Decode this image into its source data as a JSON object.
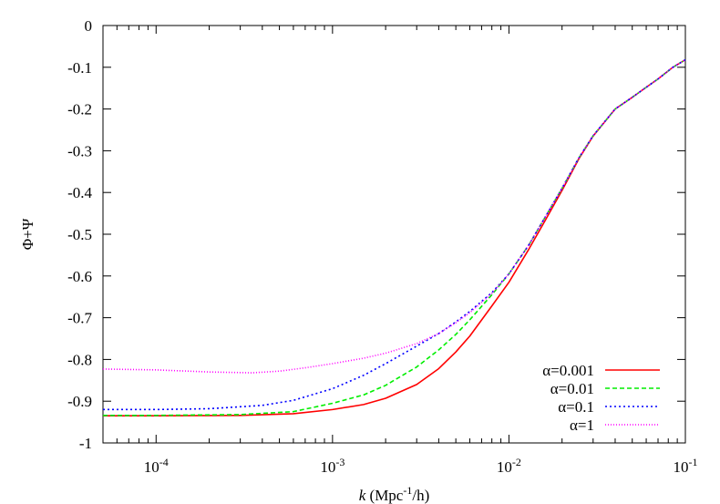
{
  "chart_data": {
    "type": "line",
    "title": "",
    "xlabel": "k (Mpc⁻¹/h)",
    "xlabel_parts": {
      "var": "k",
      "pre": " (Mpc",
      "sup": "-1",
      "post": "/h)"
    },
    "ylabel": "Φ+Ψ",
    "xscale": "log",
    "xlim": [
      5e-05,
      0.1
    ],
    "ylim": [
      -1,
      0
    ],
    "x_ticks": [
      {
        "value": 0.0001,
        "base": "10",
        "exp": "-4"
      },
      {
        "value": 0.001,
        "base": "10",
        "exp": "-3"
      },
      {
        "value": 0.01,
        "base": "10",
        "exp": "-2"
      },
      {
        "value": 0.1,
        "base": "10",
        "exp": "-1"
      }
    ],
    "y_ticks": [
      {
        "value": 0,
        "label": "0"
      },
      {
        "value": -0.1,
        "label": "-0.1"
      },
      {
        "value": -0.2,
        "label": "-0.2"
      },
      {
        "value": -0.3,
        "label": "-0.3"
      },
      {
        "value": -0.4,
        "label": "-0.4"
      },
      {
        "value": -0.5,
        "label": "-0.5"
      },
      {
        "value": -0.6,
        "label": "-0.6"
      },
      {
        "value": -0.7,
        "label": "-0.7"
      },
      {
        "value": -0.8,
        "label": "-0.8"
      },
      {
        "value": -0.9,
        "label": "-0.9"
      },
      {
        "value": -1,
        "label": "-1"
      }
    ],
    "grid": false,
    "legend_position": "bottom-right",
    "series": [
      {
        "name": "α=0.001",
        "color": "#ff0000",
        "dash": "solid",
        "points": [
          [
            5e-05,
            -0.935
          ],
          [
            0.0001,
            -0.935
          ],
          [
            0.0003,
            -0.934
          ],
          [
            0.0006,
            -0.93
          ],
          [
            0.001,
            -0.92
          ],
          [
            0.0015,
            -0.908
          ],
          [
            0.002,
            -0.893
          ],
          [
            0.003,
            -0.86
          ],
          [
            0.004,
            -0.822
          ],
          [
            0.005,
            -0.782
          ],
          [
            0.006,
            -0.744
          ],
          [
            0.008,
            -0.672
          ],
          [
            0.01,
            -0.615
          ],
          [
            0.013,
            -0.535
          ],
          [
            0.016,
            -0.468
          ],
          [
            0.02,
            -0.395
          ],
          [
            0.025,
            -0.318
          ],
          [
            0.03,
            -0.265
          ],
          [
            0.04,
            -0.2
          ],
          [
            0.05,
            -0.172
          ],
          [
            0.06,
            -0.148
          ],
          [
            0.07,
            -0.128
          ],
          [
            0.085,
            -0.1
          ],
          [
            0.1,
            -0.082
          ]
        ]
      },
      {
        "name": "α=0.01",
        "color": "#00ee00",
        "dash": "dashed",
        "points": [
          [
            5e-05,
            -0.934
          ],
          [
            0.0001,
            -0.934
          ],
          [
            0.0003,
            -0.932
          ],
          [
            0.0006,
            -0.925
          ],
          [
            0.001,
            -0.905
          ],
          [
            0.0015,
            -0.885
          ],
          [
            0.002,
            -0.862
          ],
          [
            0.003,
            -0.818
          ],
          [
            0.004,
            -0.777
          ],
          [
            0.005,
            -0.74
          ],
          [
            0.006,
            -0.705
          ],
          [
            0.008,
            -0.645
          ],
          [
            0.01,
            -0.595
          ],
          [
            0.013,
            -0.525
          ],
          [
            0.016,
            -0.46
          ],
          [
            0.02,
            -0.39
          ],
          [
            0.025,
            -0.316
          ],
          [
            0.03,
            -0.264
          ],
          [
            0.04,
            -0.2
          ],
          [
            0.05,
            -0.172
          ],
          [
            0.06,
            -0.148
          ],
          [
            0.07,
            -0.128
          ],
          [
            0.085,
            -0.1
          ],
          [
            0.1,
            -0.082
          ]
        ]
      },
      {
        "name": "α=0.1",
        "color": "#0000ff",
        "dash": "dotted",
        "points": [
          [
            5e-05,
            -0.92
          ],
          [
            0.0001,
            -0.92
          ],
          [
            0.0002,
            -0.918
          ],
          [
            0.0004,
            -0.91
          ],
          [
            0.0006,
            -0.898
          ],
          [
            0.001,
            -0.87
          ],
          [
            0.0015,
            -0.838
          ],
          [
            0.002,
            -0.81
          ],
          [
            0.003,
            -0.768
          ],
          [
            0.004,
            -0.738
          ],
          [
            0.005,
            -0.71
          ],
          [
            0.006,
            -0.685
          ],
          [
            0.008,
            -0.64
          ],
          [
            0.01,
            -0.595
          ],
          [
            0.013,
            -0.525
          ],
          [
            0.016,
            -0.46
          ],
          [
            0.02,
            -0.39
          ],
          [
            0.025,
            -0.316
          ],
          [
            0.03,
            -0.264
          ],
          [
            0.04,
            -0.2
          ],
          [
            0.05,
            -0.172
          ],
          [
            0.06,
            -0.148
          ],
          [
            0.07,
            -0.128
          ],
          [
            0.085,
            -0.1
          ],
          [
            0.1,
            -0.082
          ]
        ]
      },
      {
        "name": "α=1",
        "color": "#ff00ff",
        "dash": "fine-dotted",
        "points": [
          [
            5e-05,
            -0.823
          ],
          [
            0.0001,
            -0.825
          ],
          [
            0.0002,
            -0.83
          ],
          [
            0.00035,
            -0.832
          ],
          [
            0.0005,
            -0.828
          ],
          [
            0.0007,
            -0.82
          ],
          [
            0.001,
            -0.81
          ],
          [
            0.0015,
            -0.797
          ],
          [
            0.002,
            -0.785
          ],
          [
            0.003,
            -0.762
          ],
          [
            0.004,
            -0.738
          ],
          [
            0.005,
            -0.712
          ],
          [
            0.006,
            -0.688
          ],
          [
            0.008,
            -0.642
          ],
          [
            0.01,
            -0.595
          ],
          [
            0.013,
            -0.525
          ],
          [
            0.016,
            -0.46
          ],
          [
            0.02,
            -0.39
          ],
          [
            0.025,
            -0.316
          ],
          [
            0.03,
            -0.264
          ],
          [
            0.04,
            -0.2
          ],
          [
            0.05,
            -0.172
          ],
          [
            0.06,
            -0.148
          ],
          [
            0.07,
            -0.128
          ],
          [
            0.085,
            -0.1
          ],
          [
            0.1,
            -0.082
          ]
        ]
      }
    ]
  }
}
